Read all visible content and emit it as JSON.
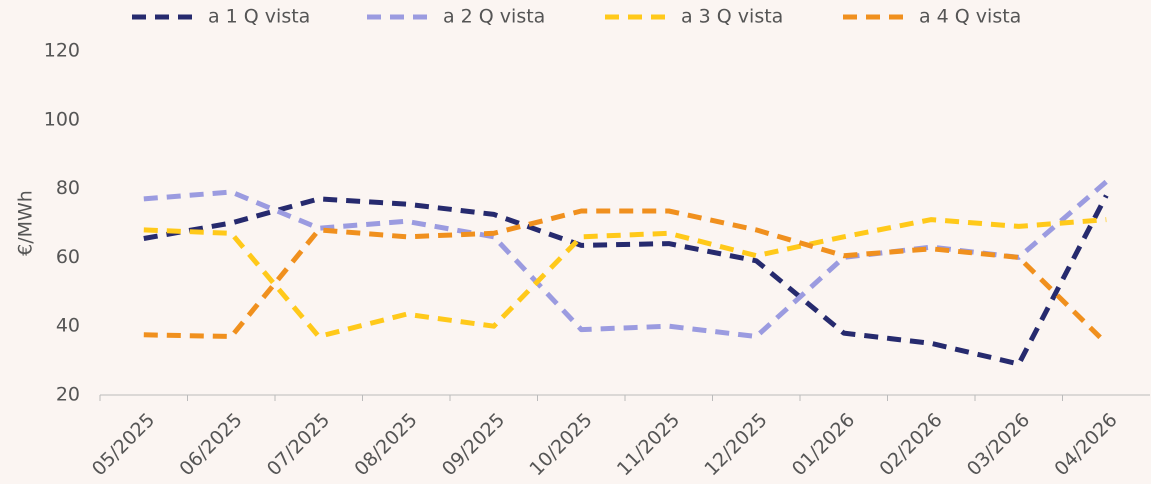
{
  "chart_data": {
    "type": "line",
    "categories": [
      "05/2025",
      "06/2025",
      "07/2025",
      "08/2025",
      "09/2025",
      "10/2025",
      "11/2025",
      "12/2025",
      "01/2026",
      "02/2026",
      "03/2026",
      "04/2026"
    ],
    "series": [
      {
        "name": "a 1 Q vista",
        "color": "#262a6e",
        "values": [
          65.5,
          70,
          77,
          75.5,
          72.5,
          63.5,
          64,
          59,
          38,
          35,
          29,
          78
        ]
      },
      {
        "name": "a 2 Q vista",
        "color": "#9b9be0",
        "values": [
          77,
          79,
          68.5,
          70.5,
          66,
          39,
          40,
          37,
          60,
          63,
          60,
          82
        ]
      },
      {
        "name": "a 3 Q vista",
        "color": "#ffc91a",
        "values": [
          68,
          67,
          37,
          43.5,
          40,
          66,
          67,
          60.5,
          66,
          71,
          69,
          71
        ]
      },
      {
        "name": "a 4 Q vista",
        "color": "#f0901e",
        "values": [
          37.5,
          37,
          68,
          66,
          67,
          73.5,
          73.5,
          68,
          60.5,
          62.5,
          60,
          35
        ]
      }
    ],
    "ylabel": "€/MWh",
    "ylim": [
      20,
      120
    ],
    "yticks": [
      20,
      40,
      60,
      80,
      100,
      120
    ],
    "legend": "top",
    "grid": false
  }
}
